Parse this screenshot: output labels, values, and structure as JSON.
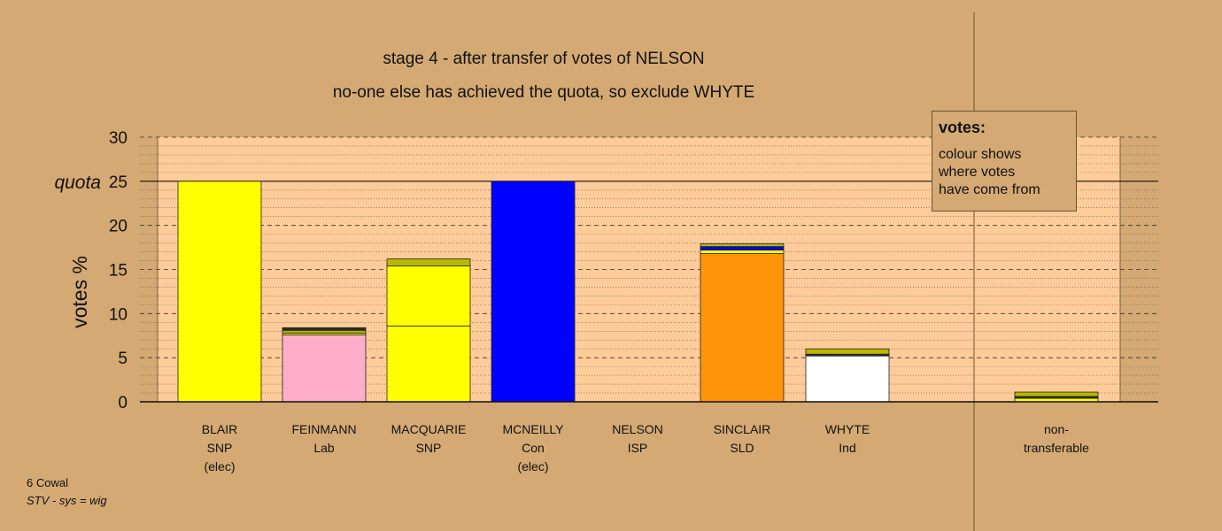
{
  "title_line1": "stage 4 - after transfer of votes of NELSON",
  "title_line2": "no-one else has achieved the quota, so exclude WHYTE",
  "legend": {
    "title": "votes:",
    "lines": [
      "colour shows",
      "where votes",
      "have come from"
    ]
  },
  "footer": {
    "ward": "6 Cowal",
    "system": "STV - sys = wig"
  },
  "chart_data": {
    "type": "bar",
    "stacked": true,
    "ylabel": "votes %",
    "ylim": [
      0,
      30
    ],
    "yticks": [
      {
        "value": 0,
        "label": "0"
      },
      {
        "value": 5,
        "label": "5"
      },
      {
        "value": 10,
        "label": "10"
      },
      {
        "value": 15,
        "label": "15"
      },
      {
        "value": 20,
        "label": "20"
      },
      {
        "value": 25,
        "label": "25"
      },
      {
        "value": 30,
        "label": "30"
      }
    ],
    "quota": {
      "value": 25,
      "label": "quota"
    },
    "grid": true,
    "colors": {
      "plot_bg": "#ffcc99",
      "page_bg": "#d4a973",
      "SNP": "#ffff00",
      "Lab": "#ffaec9",
      "Con": "#0000ff",
      "SLD": "#ff9408",
      "Ind": "#ffffff",
      "ISP": "#b8b800",
      "ISP_dark": "#2a2a2a"
    },
    "candidates": [
      {
        "name": "BLAIR",
        "party": "SNP",
        "note": "(elec)",
        "segments": [
          {
            "from": "SNP",
            "value": 25,
            "color": "#ffff00"
          }
        ]
      },
      {
        "name": "FEINMANN",
        "party": "Lab",
        "note": "",
        "segments": [
          {
            "from": "Lab",
            "value": 7.6,
            "color": "#ffaec9"
          },
          {
            "from": "SNP",
            "value": 0.2,
            "color": "#ffff00"
          },
          {
            "from": "ISP",
            "value": 0.3,
            "color": "#b8b800"
          },
          {
            "from": "transfer",
            "value": 0.3,
            "color": "#2a2a2a"
          }
        ]
      },
      {
        "name": "MACQUARIE",
        "party": "SNP",
        "note": "",
        "segments": [
          {
            "from": "SNP",
            "value": 8.6,
            "color": "#ffff00"
          },
          {
            "from": "SNP",
            "value": 6.8,
            "color": "#ffff00"
          },
          {
            "from": "ISP",
            "value": 0.8,
            "color": "#b8b800"
          }
        ]
      },
      {
        "name": "MCNEILLY",
        "party": "Con",
        "note": "(elec)",
        "segments": [
          {
            "from": "Con",
            "value": 25,
            "color": "#0000ff"
          }
        ]
      },
      {
        "name": "NELSON",
        "party": "ISP",
        "note": "",
        "segments": []
      },
      {
        "name": "SINCLAIR",
        "party": "SLD",
        "note": "",
        "segments": [
          {
            "from": "SLD",
            "value": 16.8,
            "color": "#ff9408"
          },
          {
            "from": "SNP",
            "value": 0.4,
            "color": "#ffff00"
          },
          {
            "from": "Con",
            "value": 0.4,
            "color": "#0000ff"
          },
          {
            "from": "ISP",
            "value": 0.3,
            "color": "#b8b800"
          }
        ]
      },
      {
        "name": "WHYTE",
        "party": "Ind",
        "note": "",
        "segments": [
          {
            "from": "Ind",
            "value": 5.2,
            "color": "#ffffff"
          },
          {
            "from": "transfer",
            "value": 0.2,
            "color": "#2a2a2a"
          },
          {
            "from": "ISP",
            "value": 0.6,
            "color": "#b8b800"
          }
        ]
      },
      {
        "name": "non-",
        "party": "transferable",
        "note": "",
        "nontransferable": true,
        "segments": [
          {
            "from": "SNP",
            "value": 0.4,
            "color": "#ffff00"
          },
          {
            "from": "transfer",
            "value": 0.2,
            "color": "#2a2a2a"
          },
          {
            "from": "ISP",
            "value": 0.5,
            "color": "#b8b800"
          }
        ]
      }
    ]
  }
}
